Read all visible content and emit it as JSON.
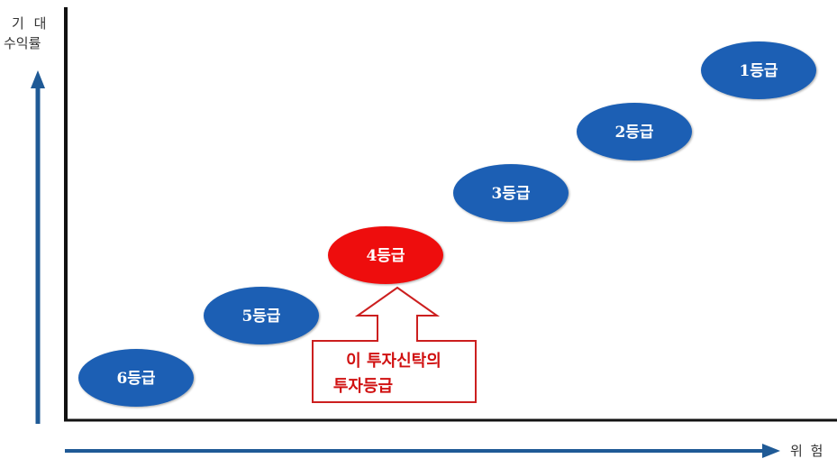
{
  "axes": {
    "y_label_line1": "기 대",
    "y_label_line2": "수익률",
    "x_label": "위 험"
  },
  "grades": [
    {
      "label": "6등급",
      "color": "#1a5fb4"
    },
    {
      "label": "5등급",
      "color": "#1a5fb4"
    },
    {
      "label": "4등급",
      "color": "#ee1111"
    },
    {
      "label": "3등급",
      "color": "#1a5fb4"
    },
    {
      "label": "2등급",
      "color": "#1a5fb4"
    },
    {
      "label": "1등급",
      "color": "#1a5fb4"
    }
  ],
  "callout": {
    "line1": "이 투자신탁의",
    "line2": "투자등급",
    "color": "#cc1f1f"
  },
  "colors": {
    "axis_arrow": "#1f5a96",
    "axis_line": "#111111"
  }
}
